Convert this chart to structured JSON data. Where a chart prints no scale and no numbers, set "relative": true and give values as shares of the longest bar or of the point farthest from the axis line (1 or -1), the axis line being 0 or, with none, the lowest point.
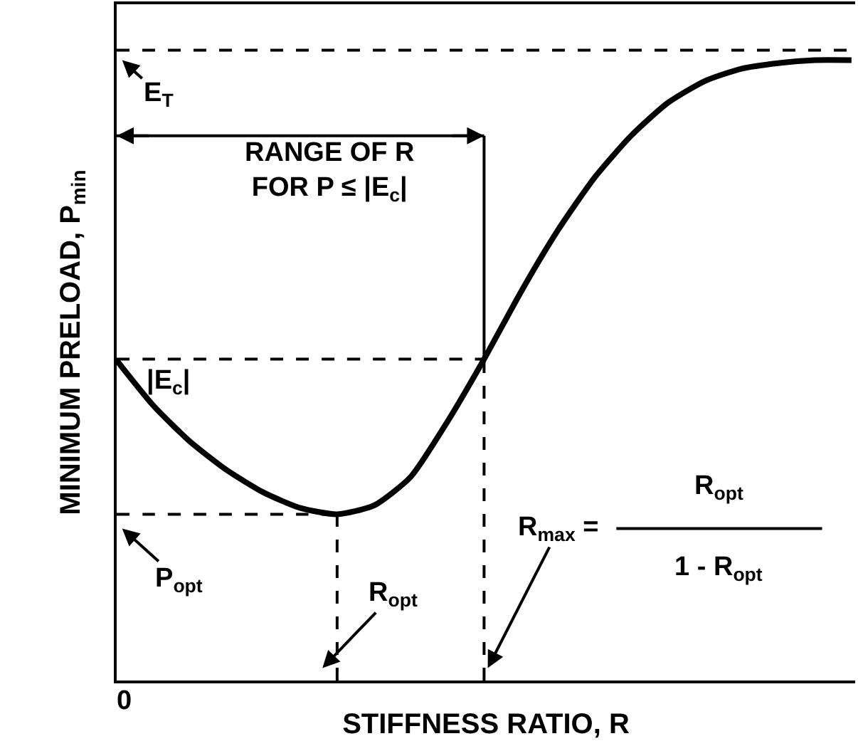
{
  "chart_data": {
    "type": "line",
    "relative": true,
    "xlabel": "STIFFNESS RATIO, R",
    "ylabel": "MINIMUM PRELOAD, P$_{min}$",
    "categories": [
      null,
      null,
      null,
      null,
      null,
      null,
      null,
      null,
      null,
      null,
      null,
      null,
      null,
      null,
      null,
      null,
      null,
      null,
      null,
      null,
      null
    ],
    "series": [
      {
        "color": "#000000",
        "line_style": "solid",
        "values": [
          0.516,
          0.443,
          0.385,
          0.339,
          0.303,
          0.278,
          0.268,
          0.282,
          0.328,
          0.417,
          0.518,
          0.626,
          0.725,
          0.81,
          0.878,
          0.931,
          0.966,
          0.986,
          0.995,
          1,
          1
        ]
      },
      {
        "color": "#000000",
        "line_style": "dashed",
        "values": [
          0.518,
          0.518,
          0.518,
          0.518,
          0.518,
          0.518,
          0.518,
          0.518,
          0.518,
          0.518,
          0.518,
          null,
          null,
          null,
          null,
          null,
          null,
          null,
          null,
          null,
          null
        ]
      },
      {
        "color": "#000000",
        "line_style": "dashed",
        "values": [
          0.268,
          0.268,
          0.268,
          0.268,
          0.268,
          0.268,
          0.268,
          null,
          null,
          null,
          null,
          null,
          null,
          null,
          null,
          null,
          null,
          null,
          null,
          null,
          null
        ]
      }
    ],
    "ref_lines": [
      {
        "axis": "y",
        "value": 1.016,
        "line_style": "dashed",
        "color": "#000000"
      }
    ],
    "annotations": [
      "E$_{T}$",
      "|E$_{c}$|",
      "P$_{opt}$",
      "R$_{opt}$",
      "R$_{max}$ =",
      "R$_{opt}$",
      "1 - R$_{opt}$",
      "RANGE OF R\nFOR P ≤ |E$_{c}$|",
      "0"
    ],
    "grid": false,
    "marker": "none"
  }
}
